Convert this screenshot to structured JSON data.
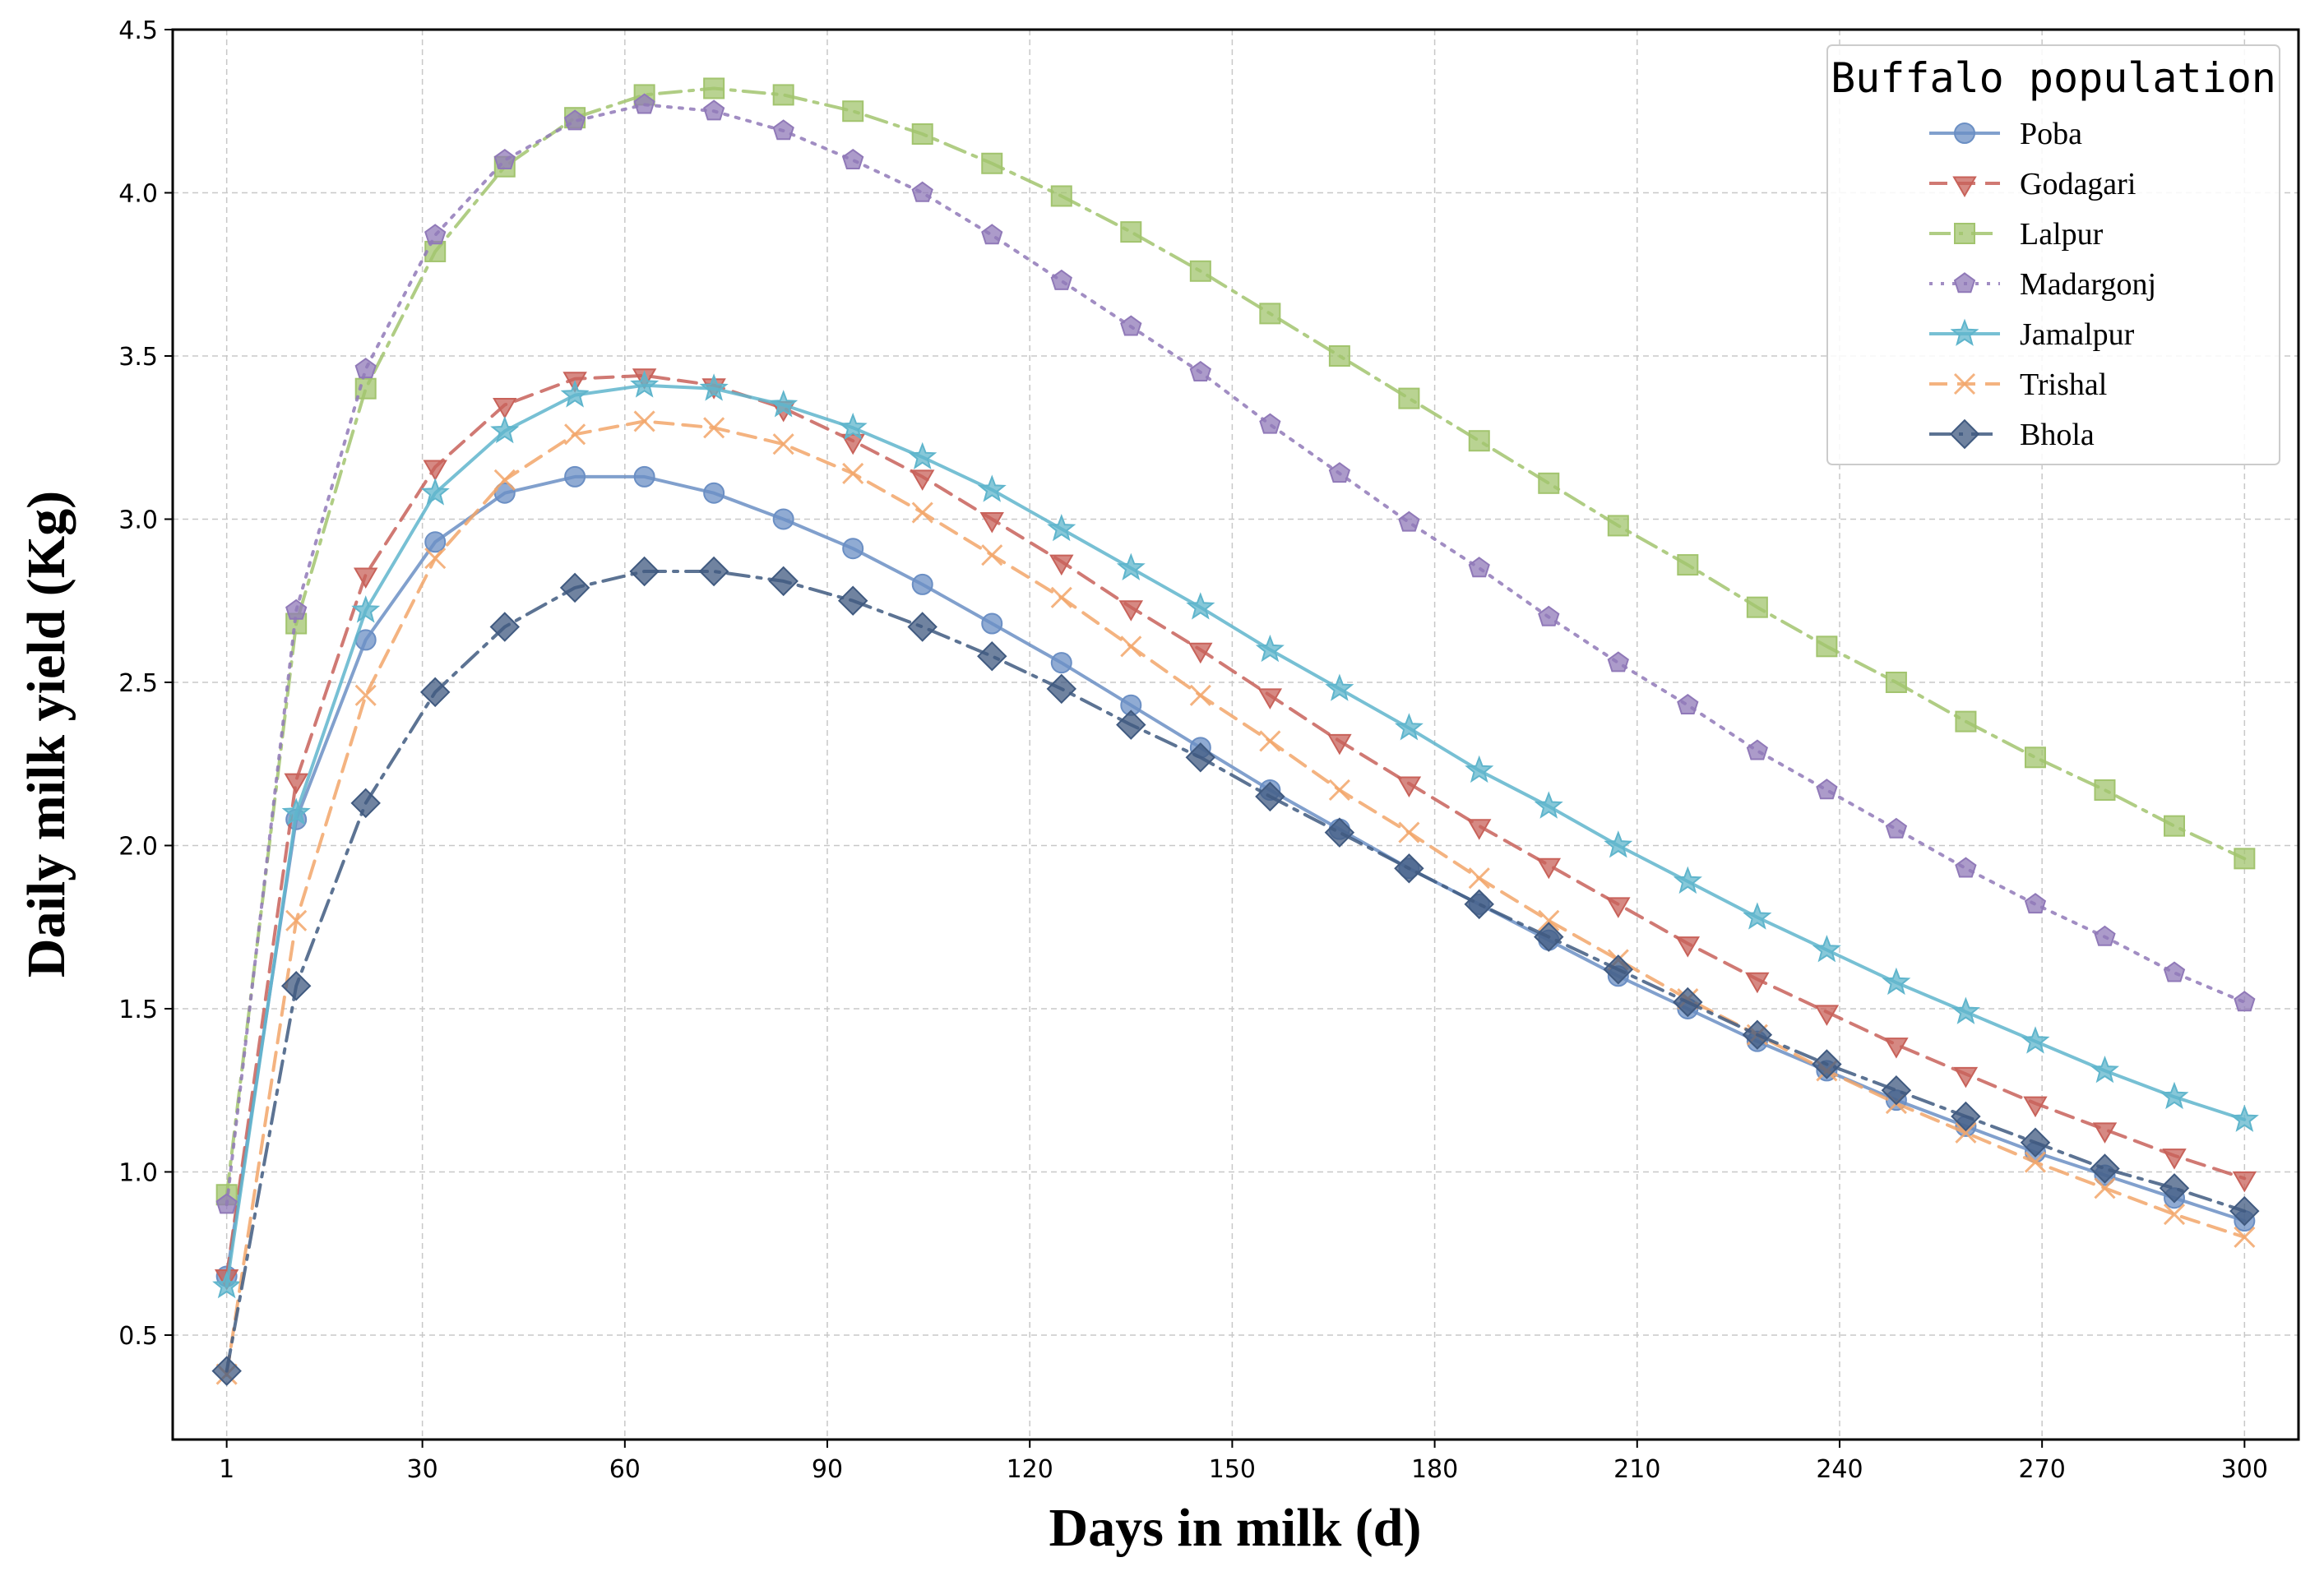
{
  "chart_data": {
    "type": "line",
    "title": "",
    "xlabel": "Days in milk (d)",
    "ylabel": "Daily milk yield (Kg)",
    "xlim": [
      -7,
      308
    ],
    "ylim": [
      0.18,
      4.5
    ],
    "x_ticks": [
      1,
      30,
      60,
      90,
      120,
      150,
      180,
      210,
      240,
      270,
      300
    ],
    "x_tick_labels": [
      "1",
      "30",
      "60",
      "90",
      "120",
      "150",
      "180",
      "210",
      "240",
      "270",
      "300"
    ],
    "y_ticks": [
      0.5,
      1.0,
      1.5,
      2.0,
      2.5,
      3.0,
      3.5,
      4.0,
      4.5
    ],
    "y_tick_labels": [
      "0.5",
      "1.0",
      "1.5",
      "2.0",
      "2.5",
      "3.0",
      "3.5",
      "4.0",
      "4.5"
    ],
    "grid": true,
    "legend": {
      "title": "Buffalo population",
      "position": "top-right"
    },
    "x": [
      1,
      11.3,
      21.6,
      31.9,
      42.2,
      52.6,
      62.9,
      73.2,
      83.5,
      93.8,
      104.1,
      114.4,
      124.7,
      135.0,
      145.3,
      155.6,
      165.9,
      176.2,
      186.6,
      196.9,
      207.2,
      217.5,
      227.8,
      238.1,
      248.4,
      258.7,
      269.0,
      279.3,
      289.6,
      300
    ],
    "series": [
      {
        "name": "Poba",
        "color": "#6b8fc4",
        "dash": "solid",
        "marker": "circle",
        "values": [
          0.68,
          2.08,
          2.63,
          2.93,
          3.08,
          3.13,
          3.13,
          3.08,
          3.0,
          2.91,
          2.8,
          2.68,
          2.56,
          2.43,
          2.3,
          2.17,
          2.05,
          1.93,
          1.82,
          1.71,
          1.6,
          1.5,
          1.4,
          1.31,
          1.22,
          1.14,
          1.06,
          0.99,
          0.92,
          0.85
        ]
      },
      {
        "name": "Godagari",
        "color": "#c8625a",
        "dash": "dashed",
        "marker": "triangle-down",
        "values": [
          0.68,
          2.2,
          2.83,
          3.16,
          3.35,
          3.43,
          3.44,
          3.41,
          3.34,
          3.24,
          3.13,
          3.0,
          2.87,
          2.73,
          2.6,
          2.46,
          2.32,
          2.19,
          2.06,
          1.94,
          1.82,
          1.7,
          1.59,
          1.49,
          1.39,
          1.3,
          1.21,
          1.13,
          1.05,
          0.98
        ]
      },
      {
        "name": "Lalpur",
        "color": "#a2c46e",
        "dash": "dashdot",
        "marker": "square",
        "values": [
          0.93,
          2.68,
          3.4,
          3.82,
          4.08,
          4.23,
          4.3,
          4.32,
          4.3,
          4.25,
          4.18,
          4.09,
          3.99,
          3.88,
          3.76,
          3.63,
          3.5,
          3.37,
          3.24,
          3.11,
          2.98,
          2.86,
          2.73,
          2.61,
          2.5,
          2.38,
          2.27,
          2.17,
          2.06,
          1.96
        ]
      },
      {
        "name": "Madargonj",
        "color": "#9079b8",
        "dash": "dotted",
        "marker": "pentagon",
        "values": [
          0.9,
          2.72,
          3.46,
          3.87,
          4.1,
          4.22,
          4.27,
          4.25,
          4.19,
          4.1,
          4.0,
          3.87,
          3.73,
          3.59,
          3.45,
          3.29,
          3.14,
          2.99,
          2.85,
          2.7,
          2.56,
          2.43,
          2.29,
          2.17,
          2.05,
          1.93,
          1.82,
          1.72,
          1.61,
          1.52
        ]
      },
      {
        "name": "Jamalpur",
        "color": "#5fb5cc",
        "dash": "solid",
        "marker": "star",
        "values": [
          0.65,
          2.1,
          2.72,
          3.08,
          3.27,
          3.38,
          3.41,
          3.4,
          3.35,
          3.28,
          3.19,
          3.09,
          2.97,
          2.85,
          2.73,
          2.6,
          2.48,
          2.36,
          2.23,
          2.12,
          2.0,
          1.89,
          1.78,
          1.68,
          1.58,
          1.49,
          1.4,
          1.31,
          1.23,
          1.16
        ]
      },
      {
        "name": "Trishal",
        "color": "#f2a66a",
        "dash": "dashed",
        "marker": "x",
        "values": [
          0.38,
          1.77,
          2.46,
          2.88,
          3.12,
          3.26,
          3.3,
          3.28,
          3.23,
          3.14,
          3.02,
          2.89,
          2.76,
          2.61,
          2.46,
          2.32,
          2.17,
          2.04,
          1.9,
          1.77,
          1.65,
          1.53,
          1.42,
          1.31,
          1.21,
          1.12,
          1.03,
          0.95,
          0.87,
          0.8
        ]
      },
      {
        "name": "Bhola",
        "color": "#405a80",
        "dash": "dashdot",
        "marker": "diamond",
        "values": [
          0.39,
          1.57,
          2.13,
          2.47,
          2.67,
          2.79,
          2.84,
          2.84,
          2.81,
          2.75,
          2.67,
          2.58,
          2.48,
          2.37,
          2.27,
          2.15,
          2.04,
          1.93,
          1.82,
          1.72,
          1.62,
          1.52,
          1.42,
          1.33,
          1.25,
          1.17,
          1.09,
          1.01,
          0.95,
          0.88
        ]
      }
    ]
  }
}
